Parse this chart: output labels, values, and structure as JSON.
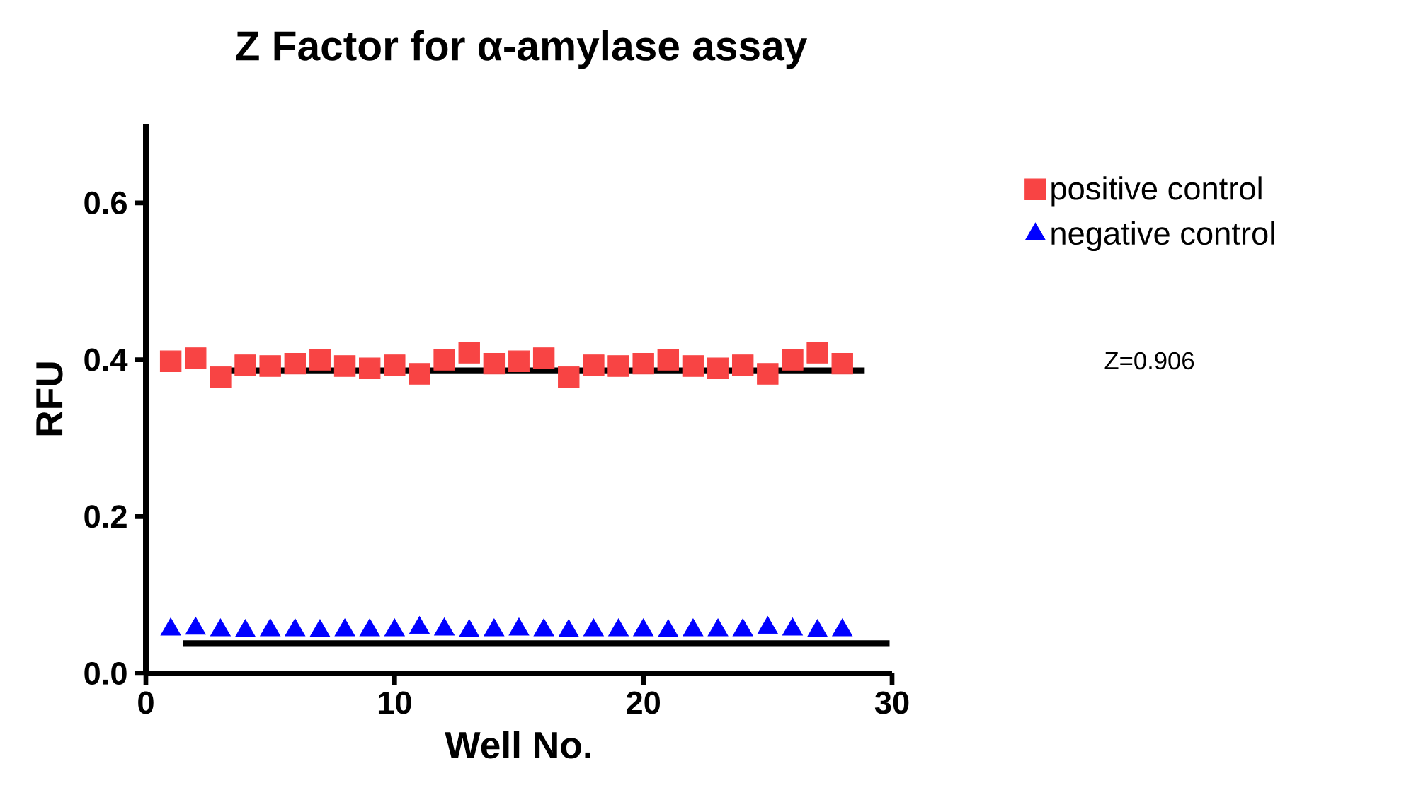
{
  "chart_data": {
    "type": "scatter",
    "title": "Z Factor for α-amylase assay",
    "xlabel": "Well No.",
    "ylabel": "RFU",
    "xlim": [
      0,
      30
    ],
    "xticks": [
      0,
      10,
      20,
      30
    ],
    "ylim": [
      0,
      0.7
    ],
    "yticks": [
      {
        "value": 0,
        "label": "0.0"
      },
      {
        "value": 0.2,
        "label": "0.2"
      },
      {
        "value": 0.4,
        "label": "0.4"
      },
      {
        "value": 0.6,
        "label": "0.6"
      }
    ],
    "legend": "top right",
    "grid": false,
    "annotations": [
      "Z=0.906"
    ],
    "series": [
      {
        "name": "positive control",
        "color": "#f84444",
        "marker": "square",
        "x": [
          1,
          2,
          3,
          4,
          5,
          6,
          7,
          8,
          9,
          10,
          11,
          12,
          13,
          14,
          15,
          16,
          17,
          18,
          19,
          20,
          21,
          22,
          23,
          24,
          25,
          26,
          27,
          28
        ],
        "values": [
          0.398,
          0.402,
          0.378,
          0.393,
          0.392,
          0.395,
          0.4,
          0.392,
          0.389,
          0.393,
          0.382,
          0.4,
          0.409,
          0.395,
          0.398,
          0.402,
          0.378,
          0.393,
          0.392,
          0.395,
          0.4,
          0.392,
          0.389,
          0.393,
          0.382,
          0.4,
          0.409,
          0.395
        ]
      },
      {
        "name": "negative control",
        "color": "#0000ff",
        "marker": "triangle",
        "x": [
          1,
          2,
          3,
          4,
          5,
          6,
          7,
          8,
          9,
          10,
          11,
          12,
          13,
          14,
          15,
          16,
          17,
          18,
          19,
          20,
          21,
          22,
          23,
          24,
          25,
          26,
          27,
          28
        ],
        "values": [
          0.056,
          0.057,
          0.055,
          0.054,
          0.055,
          0.055,
          0.054,
          0.055,
          0.055,
          0.055,
          0.058,
          0.056,
          0.054,
          0.055,
          0.056,
          0.055,
          0.054,
          0.055,
          0.055,
          0.055,
          0.054,
          0.055,
          0.055,
          0.055,
          0.058,
          0.056,
          0.054,
          0.055
        ]
      },
      {
        "type": "line",
        "color": "#000000",
        "marker": "none",
        "x": [
          2.6,
          28.9
        ],
        "values": [
          0.386,
          0.386
        ]
      },
      {
        "type": "line",
        "color": "#000000",
        "marker": "none",
        "x": [
          1.5,
          29.9
        ],
        "values": [
          0.038,
          0.038
        ]
      }
    ]
  }
}
